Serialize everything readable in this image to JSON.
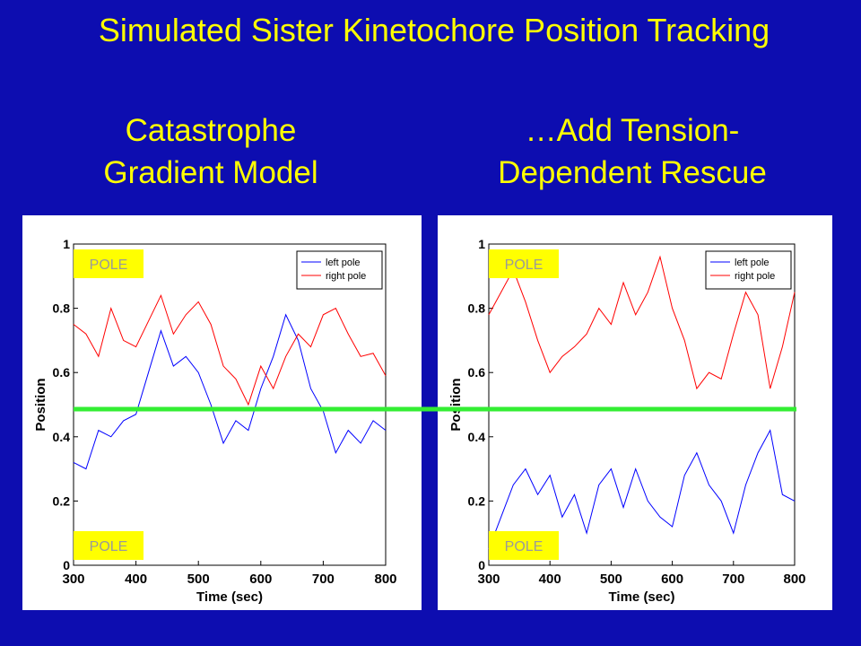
{
  "title": "Simulated Sister Kinetochore Position Tracking",
  "chart_data": [
    {
      "type": "line",
      "title": [
        "Catastrophe",
        "Gradient Model"
      ],
      "xlabel": "Time (sec)",
      "ylabel": "Position",
      "x": [
        300,
        320,
        340,
        360,
        380,
        400,
        420,
        440,
        460,
        480,
        500,
        520,
        540,
        560,
        580,
        600,
        620,
        640,
        660,
        680,
        700,
        720,
        740,
        760,
        780,
        800
      ],
      "series": [
        {
          "name": "left pole",
          "color": "#0000ff",
          "values": [
            0.32,
            0.3,
            0.42,
            0.4,
            0.45,
            0.47,
            0.6,
            0.73,
            0.62,
            0.65,
            0.6,
            0.5,
            0.38,
            0.45,
            0.42,
            0.55,
            0.65,
            0.78,
            0.7,
            0.55,
            0.48,
            0.35,
            0.42,
            0.38,
            0.45,
            0.42
          ]
        },
        {
          "name": "right pole",
          "color": "#ff0000",
          "values": [
            0.75,
            0.72,
            0.65,
            0.8,
            0.7,
            0.68,
            0.76,
            0.84,
            0.72,
            0.78,
            0.82,
            0.75,
            0.62,
            0.58,
            0.5,
            0.62,
            0.55,
            0.65,
            0.72,
            0.68,
            0.78,
            0.8,
            0.72,
            0.65,
            0.66,
            0.59
          ]
        }
      ],
      "xlim": [
        300,
        800
      ],
      "xticks": [
        300,
        400,
        500,
        600,
        700,
        800
      ],
      "ylim": [
        0,
        1
      ],
      "yticks": [
        0,
        0.2,
        0.4,
        0.6,
        0.8,
        1
      ],
      "legend": "upper right",
      "annotations": [
        "POLE",
        "POLE"
      ]
    },
    {
      "type": "line",
      "title": [
        "…Add Tension-",
        "Dependent Rescue"
      ],
      "xlabel": "Time (sec)",
      "ylabel": "Position",
      "x": [
        300,
        320,
        340,
        360,
        380,
        400,
        420,
        440,
        460,
        480,
        500,
        520,
        540,
        560,
        580,
        600,
        620,
        640,
        660,
        680,
        700,
        720,
        740,
        760,
        780,
        800
      ],
      "series": [
        {
          "name": "left pole",
          "color": "#0000ff",
          "values": [
            0.05,
            0.15,
            0.25,
            0.3,
            0.22,
            0.28,
            0.15,
            0.22,
            0.1,
            0.25,
            0.3,
            0.18,
            0.3,
            0.2,
            0.15,
            0.12,
            0.28,
            0.35,
            0.25,
            0.2,
            0.1,
            0.25,
            0.35,
            0.42,
            0.22,
            0.2
          ]
        },
        {
          "name": "right pole",
          "color": "#ff0000",
          "values": [
            0.78,
            0.85,
            0.92,
            0.82,
            0.7,
            0.6,
            0.65,
            0.68,
            0.72,
            0.8,
            0.75,
            0.88,
            0.78,
            0.85,
            0.96,
            0.8,
            0.7,
            0.55,
            0.6,
            0.58,
            0.72,
            0.85,
            0.78,
            0.55,
            0.68,
            0.85
          ]
        }
      ],
      "xlim": [
        300,
        800
      ],
      "xticks": [
        300,
        400,
        500,
        600,
        700,
        800
      ],
      "ylim": [
        0,
        1
      ],
      "yticks": [
        0,
        0.2,
        0.4,
        0.6,
        0.8,
        1
      ],
      "legend": "upper right",
      "annotations": [
        "POLE",
        "POLE"
      ]
    }
  ]
}
